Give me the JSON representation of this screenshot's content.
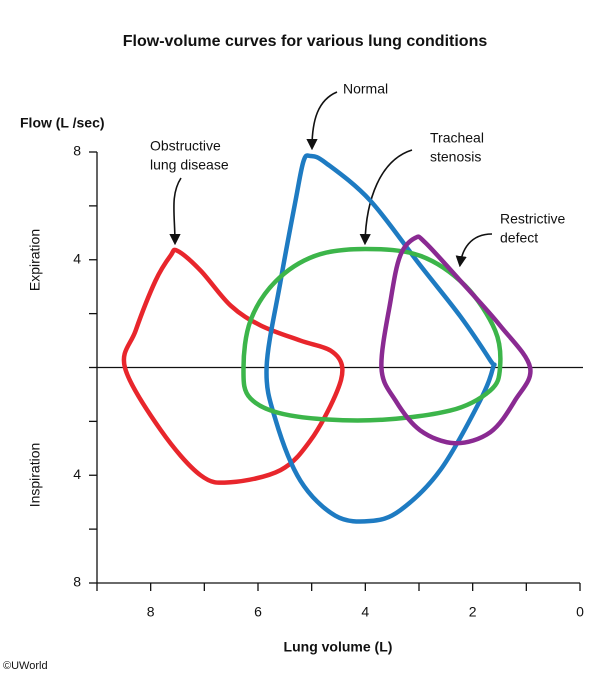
{
  "chart_data": {
    "type": "line",
    "title": "Flow-volume curves for various lung conditions",
    "y_axis_label": "Flow (L /sec)",
    "y_upper_label": "Expiration",
    "y_lower_label": "Inspiration",
    "x_axis_label": "Lung volume (L)",
    "credit": "©UWorld",
    "xlim": [
      9,
      0
    ],
    "ylim": [
      -8,
      8
    ],
    "xticks": [
      8,
      6,
      4,
      2,
      0
    ],
    "xminor_ticks": [
      9,
      7,
      5,
      3,
      1
    ],
    "yticks": [
      8,
      4,
      {
        "value": -4,
        "label": "4"
      },
      {
        "value": -8,
        "label": "8"
      }
    ],
    "yminor_ticks": [
      6,
      2,
      0,
      -2,
      -6
    ],
    "annotations": [
      {
        "lines": [
          "Obstructive",
          "lung disease"
        ]
      },
      {
        "lines": [
          "Normal"
        ]
      },
      {
        "lines": [
          "Tracheal",
          "stenosis"
        ]
      },
      {
        "lines": [
          "Restrictive",
          "defect"
        ]
      }
    ],
    "series": [
      {
        "name": "Obstructive lung disease",
        "color": "#e8262c",
        "x": [
          8.48,
          8.28,
          7.91,
          7.63,
          7.5,
          7.07,
          6.51,
          5.95,
          5.21,
          4.65,
          4.43,
          4.56,
          5.02,
          5.58,
          6.51,
          7.07,
          7.81
        ],
        "y": [
          0,
          1.37,
          3.22,
          4.15,
          4.33,
          3.6,
          2.3,
          1.56,
          1.0,
          0.63,
          0,
          -1.04,
          -2.7,
          -3.81,
          -4.26,
          -4.0,
          -2.33
        ]
      },
      {
        "name": "Normal",
        "color": "#1e7bc2",
        "x": [
          5.84,
          5.58,
          5.3,
          5.15,
          5.02,
          4.74,
          3.91,
          2.98,
          2.23,
          1.67,
          1.62,
          1.86,
          2.6,
          3.35,
          3.91,
          4.56,
          5.21,
          5.67
        ],
        "y": [
          0,
          3.2,
          6.2,
          7.67,
          7.85,
          7.6,
          6.2,
          3.8,
          1.9,
          0.26,
          0,
          -1.22,
          -3.8,
          -5.3,
          -5.7,
          -5.5,
          -4.2,
          -1.96
        ]
      },
      {
        "name": "Tracheal stenosis",
        "color": "#3cb54a",
        "x": [
          6.27,
          6.14,
          5.67,
          4.93,
          4.0,
          2.98,
          2.14,
          1.58,
          1.49,
          1.67,
          2.42,
          3.91,
          5.4,
          6.14
        ],
        "y": [
          0,
          1.74,
          3.2,
          4.15,
          4.4,
          4.15,
          3.04,
          1.37,
          0,
          -0.85,
          -1.6,
          -1.96,
          -1.78,
          -1.15
        ]
      },
      {
        "name": "Restrictive defect",
        "color": "#8a2a92",
        "x": [
          3.7,
          3.53,
          3.35,
          3.07,
          2.88,
          2.23,
          1.49,
          0.93,
          1.21,
          1.67,
          2.33,
          2.98,
          3.44
        ],
        "y": [
          0,
          2.48,
          4.15,
          4.81,
          4.63,
          3.22,
          1.56,
          0,
          -1.22,
          -2.4,
          -2.81,
          -2.33,
          -1.22
        ]
      }
    ]
  }
}
